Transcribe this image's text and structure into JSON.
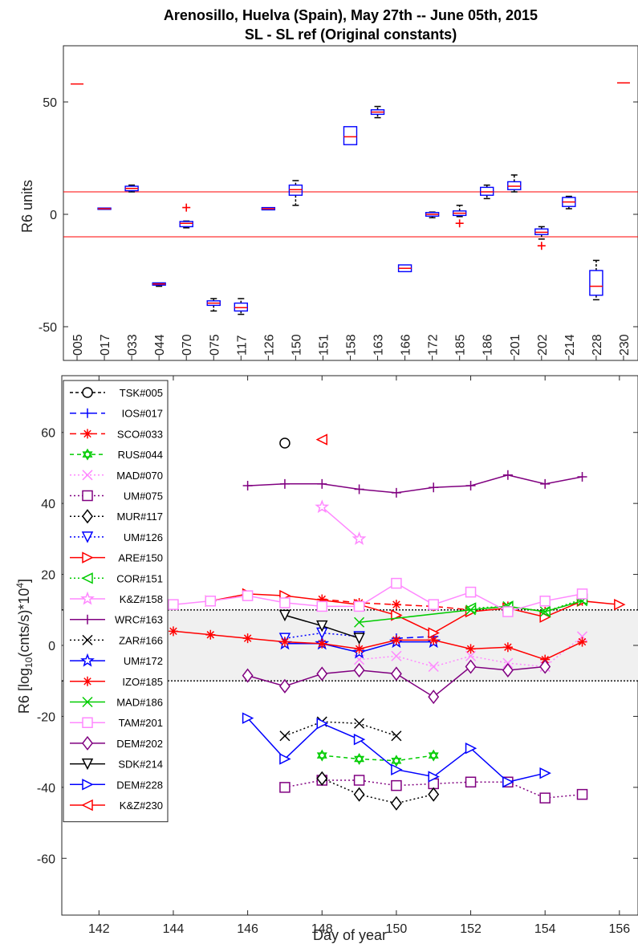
{
  "chart_data": [
    {
      "type": "box",
      "title": "Arenosillo, Huelva (Spain), May 27th -- June 05th, 2015",
      "subtitle": "SL - SL ref (Original constants)",
      "ylabel": "R6 units",
      "ylim": [
        -65,
        75
      ],
      "yticks": [
        -50,
        0,
        50
      ],
      "reference_lines": [
        10,
        -10
      ],
      "categories": [
        "005",
        "017",
        "033",
        "044",
        "070",
        "075",
        "117",
        "126",
        "150",
        "151",
        "158",
        "163",
        "166",
        "172",
        "185",
        "186",
        "201",
        "202",
        "214",
        "228",
        "230"
      ],
      "boxes": [
        {
          "label": "005",
          "median": 58,
          "q1": 58,
          "q3": 58,
          "whisker_low": 58,
          "whisker_high": 58,
          "outliers": []
        },
        {
          "label": "017",
          "median": 2.5,
          "q1": 2.2,
          "q3": 2.8,
          "whisker_low": 2.2,
          "whisker_high": 2.8,
          "outliers": []
        },
        {
          "label": "033",
          "median": 11.5,
          "q1": 10.5,
          "q3": 12.5,
          "whisker_low": 10,
          "whisker_high": 13,
          "outliers": []
        },
        {
          "label": "044",
          "median": -31,
          "q1": -31.5,
          "q3": -30.5,
          "whisker_low": -32,
          "whisker_high": -30.5,
          "outliers": []
        },
        {
          "label": "070",
          "median": -4,
          "q1": -5.5,
          "q3": -3.2,
          "whisker_low": -6,
          "whisker_high": -3,
          "outliers": [
            3
          ]
        },
        {
          "label": "075",
          "median": -39.5,
          "q1": -40.5,
          "q3": -38.5,
          "whisker_low": -43,
          "whisker_high": -37.5,
          "outliers": []
        },
        {
          "label": "117",
          "median": -41.5,
          "q1": -43,
          "q3": -39.5,
          "whisker_low": -44.5,
          "whisker_high": -37.5,
          "outliers": []
        },
        {
          "label": "126",
          "median": 2.5,
          "q1": 2,
          "q3": 3,
          "whisker_low": 2,
          "whisker_high": 3,
          "outliers": []
        },
        {
          "label": "150",
          "median": 11,
          "q1": 8.5,
          "q3": 13,
          "whisker_low": 4,
          "whisker_high": 15,
          "outliers": []
        },
        {
          "label": "151",
          "median": null,
          "q1": null,
          "q3": null,
          "whisker_low": null,
          "whisker_high": null,
          "outliers": []
        },
        {
          "label": "158",
          "median": 34.5,
          "q1": 31,
          "q3": 39,
          "whisker_low": 31,
          "whisker_high": 39,
          "outliers": []
        },
        {
          "label": "163",
          "median": 45.5,
          "q1": 44.5,
          "q3": 46.5,
          "whisker_low": 43,
          "whisker_high": 48,
          "outliers": []
        },
        {
          "label": "166",
          "median": -24,
          "q1": -25.5,
          "q3": -22.5,
          "whisker_low": -25.5,
          "whisker_high": -22.5,
          "outliers": []
        },
        {
          "label": "172",
          "median": 0,
          "q1": -0.8,
          "q3": 0.8,
          "whisker_low": -1.5,
          "whisker_high": 1,
          "outliers": []
        },
        {
          "label": "185",
          "median": 0.5,
          "q1": -0.5,
          "q3": 1.5,
          "whisker_low": -1,
          "whisker_high": 4,
          "outliers": [
            -4
          ]
        },
        {
          "label": "186",
          "median": 10,
          "q1": 8.5,
          "q3": 12,
          "whisker_low": 7,
          "whisker_high": 13,
          "outliers": []
        },
        {
          "label": "201",
          "median": 12.5,
          "q1": 11,
          "q3": 14.5,
          "whisker_low": 10,
          "whisker_high": 17.5,
          "outliers": []
        },
        {
          "label": "202",
          "median": -8,
          "q1": -9,
          "q3": -6.5,
          "whisker_low": -11,
          "whisker_high": -5.5,
          "outliers": [
            -14
          ]
        },
        {
          "label": "214",
          "median": 5.5,
          "q1": 3.5,
          "q3": 7.5,
          "whisker_low": 2.5,
          "whisker_high": 8,
          "outliers": []
        },
        {
          "label": "228",
          "median": -32,
          "q1": -36,
          "q3": -25,
          "whisker_low": -38,
          "whisker_high": -20.5,
          "outliers": []
        },
        {
          "label": "230",
          "median": 58.5,
          "q1": 58.5,
          "q3": 58.5,
          "whisker_low": 58.5,
          "whisker_high": 58.5,
          "outliers": []
        }
      ]
    },
    {
      "type": "line",
      "xlabel": "Day of year",
      "ylabel": "R6 [log10(cnts/s)*10^4]",
      "ylabel_parts": {
        "pre": "R6 [log",
        "sub": "10",
        "mid": "(cnts/s)*10",
        "sup": "4",
        "post": "]"
      },
      "xlim": [
        141,
        156.5
      ],
      "ylim": [
        -76,
        76
      ],
      "xticks": [
        142,
        144,
        146,
        148,
        150,
        152,
        154,
        156
      ],
      "yticks": [
        -60,
        -40,
        -20,
        0,
        20,
        40,
        60
      ],
      "band": [
        -10,
        10
      ],
      "legend_position": "left",
      "series": [
        {
          "name": "TSK#005",
          "color": "#000000",
          "marker": "circle",
          "dash": "4,3",
          "points": [
            [
              147,
              57
            ]
          ]
        },
        {
          "name": "IOS#017",
          "color": "#0000ff",
          "marker": "plus",
          "dash": "8,5",
          "points": [
            [
              150,
              2
            ],
            [
              151,
              2.5
            ]
          ]
        },
        {
          "name": "SCO#033",
          "color": "#ff0000",
          "marker": "asterisk",
          "dash": "8,5",
          "points": [
            [
              148,
              13
            ],
            [
              149,
              12
            ],
            [
              150,
              11.5
            ],
            [
              151,
              11
            ],
            [
              152,
              10
            ],
            [
              153,
              11
            ],
            [
              154,
              9.5
            ],
            [
              155,
              12.5
            ]
          ]
        },
        {
          "name": "RUS#044",
          "color": "#00cc00",
          "marker": "hexagram",
          "dash": "5,4",
          "points": [
            [
              148,
              -31
            ],
            [
              149,
              -32
            ],
            [
              150,
              -32.5
            ],
            [
              151,
              -31
            ]
          ]
        },
        {
          "name": "MAD#070",
          "color": "#ff88ff",
          "marker": "x",
          "dash": "2,3",
          "points": [
            [
              149,
              -4
            ],
            [
              150,
              -3
            ],
            [
              151,
              -6
            ],
            [
              152,
              -3
            ],
            [
              153,
              -5
            ],
            [
              154,
              -6
            ],
            [
              155,
              2.5
            ]
          ]
        },
        {
          "name": "UM#075",
          "color": "#800080",
          "marker": "square",
          "dash": "2,3",
          "points": [
            [
              147,
              -40
            ],
            [
              148,
              -38
            ],
            [
              149,
              -38
            ],
            [
              150,
              -39.5
            ],
            [
              151,
              -39
            ],
            [
              152,
              -38.5
            ],
            [
              153,
              -38.5
            ],
            [
              154,
              -43
            ],
            [
              155,
              -42
            ]
          ]
        },
        {
          "name": "MUR#117",
          "color": "#000000",
          "marker": "diamond",
          "dash": "2,3",
          "points": [
            [
              148,
              -37.5
            ],
            [
              149,
              -42
            ],
            [
              150,
              -44.5
            ],
            [
              151,
              -42
            ]
          ]
        },
        {
          "name": "UM#126",
          "color": "#0000ff",
          "marker": "triangle-down",
          "dash": "2,3",
          "points": [
            [
              147,
              2
            ],
            [
              148,
              3.5
            ],
            [
              149,
              2.5
            ]
          ]
        },
        {
          "name": "ARE#150",
          "color": "#ff0000",
          "marker": "triangle-right",
          "dash": "",
          "points": [
            [
              145,
              12.5
            ],
            [
              146,
              14.5
            ],
            [
              147,
              14
            ],
            [
              149,
              11.5
            ],
            [
              150,
              8.5
            ],
            [
              151,
              3.5
            ],
            [
              152,
              9.5
            ],
            [
              153,
              10.5
            ],
            [
              154,
              8
            ],
            [
              155,
              12.5
            ],
            [
              156,
              11.5
            ]
          ]
        },
        {
          "name": "COR#151",
          "color": "#00cc00",
          "marker": "triangle-left",
          "dash": "2,3",
          "points": [
            [
              152,
              10.5
            ],
            [
              153,
              11
            ],
            [
              154,
              9.5
            ],
            [
              155,
              13
            ]
          ]
        },
        {
          "name": "K&Z#158",
          "color": "#ff88ff",
          "marker": "pentagram",
          "dash": "",
          "points": [
            [
              148,
              39
            ],
            [
              149,
              30
            ]
          ]
        },
        {
          "name": "WRC#163",
          "color": "#800080",
          "marker": "plus",
          "dash": "",
          "points": [
            [
              146,
              45
            ],
            [
              147,
              45.5
            ],
            [
              148,
              45.5
            ],
            [
              149,
              44
            ],
            [
              150,
              43
            ],
            [
              151,
              44.5
            ],
            [
              152,
              45
            ],
            [
              153,
              48
            ],
            [
              154,
              45.5
            ],
            [
              155,
              47.5
            ]
          ]
        },
        {
          "name": "ZAR#166",
          "color": "#000000",
          "marker": "x",
          "dash": "2,3",
          "points": [
            [
              147,
              -25.5
            ],
            [
              148,
              -21.5
            ],
            [
              149,
              -22
            ],
            [
              150,
              -25.5
            ]
          ]
        },
        {
          "name": "UM#172",
          "color": "#0000ff",
          "marker": "pentagram",
          "dash": "",
          "points": [
            [
              147,
              0.5
            ],
            [
              148,
              0.5
            ],
            [
              149,
              -2
            ],
            [
              150,
              1
            ],
            [
              151,
              1
            ]
          ]
        },
        {
          "name": "IZO#185",
          "color": "#ff0000",
          "marker": "asterisk",
          "dash": "",
          "points": [
            [
              144,
              4
            ],
            [
              145,
              3
            ],
            [
              146,
              2
            ],
            [
              147,
              1
            ],
            [
              148,
              0.5
            ],
            [
              149,
              -1
            ],
            [
              150,
              1.5
            ],
            [
              151,
              1.5
            ],
            [
              152,
              -1
            ],
            [
              153,
              -0.5
            ],
            [
              154,
              -4
            ],
            [
              155,
              1
            ]
          ]
        },
        {
          "name": "MAD#186",
          "color": "#00cc00",
          "marker": "x",
          "dash": "",
          "points": [
            [
              149,
              6.5
            ],
            [
              152,
              10
            ],
            [
              153,
              11
            ],
            [
              154,
              9.5
            ],
            [
              155,
              12.5
            ]
          ]
        },
        {
          "name": "TAM#201",
          "color": "#ff88ff",
          "marker": "square",
          "dash": "",
          "points": [
            [
              144,
              11.5
            ],
            [
              145,
              12.5
            ],
            [
              146,
              14
            ],
            [
              147,
              12
            ],
            [
              148,
              11
            ],
            [
              149,
              11
            ],
            [
              150,
              17.5
            ],
            [
              151,
              11.5
            ],
            [
              152,
              15
            ],
            [
              153,
              9.5
            ],
            [
              154,
              12.5
            ],
            [
              155,
              14.5
            ]
          ]
        },
        {
          "name": "DEM#202",
          "color": "#800080",
          "marker": "diamond",
          "dash": "",
          "points": [
            [
              146,
              -8.5
            ],
            [
              147,
              -11.5
            ],
            [
              148,
              -8
            ],
            [
              149,
              -7
            ],
            [
              150,
              -8
            ],
            [
              151,
              -14.5
            ],
            [
              152,
              -6
            ],
            [
              153,
              -7
            ],
            [
              154,
              -6
            ]
          ]
        },
        {
          "name": "SDK#214",
          "color": "#000000",
          "marker": "triangle-down",
          "dash": "",
          "points": [
            [
              147,
              8.5
            ],
            [
              148,
              5.5
            ],
            [
              149,
              2
            ]
          ]
        },
        {
          "name": "DEM#228",
          "color": "#0000ff",
          "marker": "triangle-right",
          "dash": "",
          "points": [
            [
              146,
              -20.5
            ],
            [
              147,
              -32
            ],
            [
              148,
              -22
            ],
            [
              149,
              -26.5
            ],
            [
              150,
              -35
            ],
            [
              151,
              -37
            ],
            [
              152,
              -29
            ],
            [
              153,
              -38.5
            ],
            [
              154,
              -36
            ]
          ]
        },
        {
          "name": "K&Z#230",
          "color": "#ff0000",
          "marker": "triangle-left",
          "dash": "",
          "points": [
            [
              148,
              58
            ]
          ]
        }
      ]
    }
  ]
}
